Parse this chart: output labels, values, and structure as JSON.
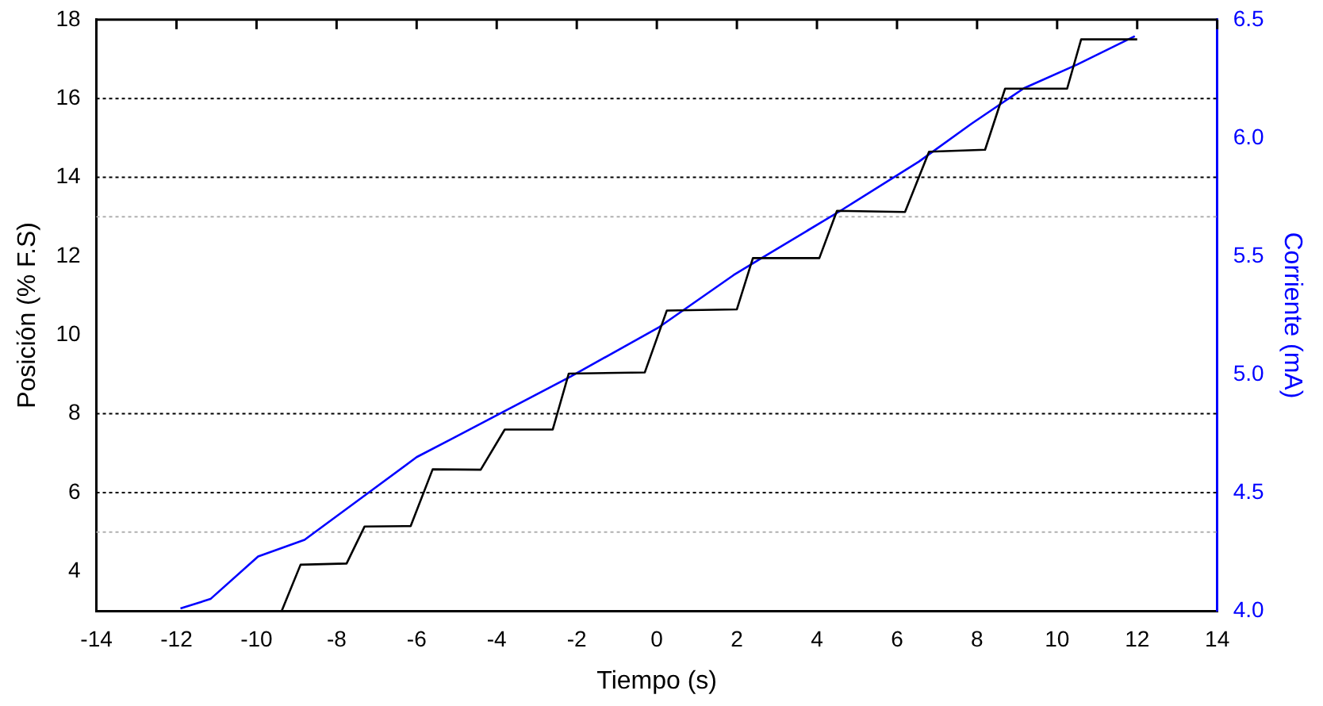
{
  "chart_data": {
    "type": "line",
    "xlabel": "Tiempo (s)",
    "ylabel": "Posición (% F.S)",
    "y2label": "Corriente (mA)",
    "xlim": [
      -14,
      14
    ],
    "xticks": [
      -14,
      -12,
      -10,
      -8,
      -6,
      -4,
      -2,
      0,
      2,
      4,
      6,
      8,
      10,
      12,
      14
    ],
    "ylim": [
      3,
      18
    ],
    "yticks": [
      4,
      6,
      8,
      10,
      12,
      14,
      16,
      18
    ],
    "y2lim": [
      4.0,
      6.5
    ],
    "y2ticks": [
      {
        "value": 4,
        "label": "4.0"
      },
      {
        "value": 4.5,
        "label": "4.5"
      },
      {
        "value": 5,
        "label": "5.0"
      },
      {
        "value": 5.5,
        "label": "5.5"
      },
      {
        "value": 6,
        "label": "6.0"
      },
      {
        "value": 6.5,
        "label": "6.5"
      }
    ],
    "grid": false,
    "legend": false,
    "marker": "none",
    "line_style": "solid",
    "ref_lines": [
      {
        "axis": "y",
        "value": 6,
        "color": "#000000",
        "line_style": "dotted"
      },
      {
        "axis": "y",
        "value": 8,
        "color": "#000000",
        "line_style": "dotted"
      },
      {
        "axis": "y",
        "value": 14,
        "color": "#000000",
        "line_style": "dotted"
      },
      {
        "axis": "y",
        "value": 16,
        "color": "#000000",
        "line_style": "dotted"
      },
      {
        "axis": "y",
        "value": 5,
        "color": "#b0b0b0",
        "line_style": "dotted"
      },
      {
        "axis": "y",
        "value": 13,
        "color": "#b0b0b0",
        "line_style": "dotted"
      }
    ],
    "series": [
      {
        "color": "#000000",
        "x": [
          -9.37,
          -8.9,
          -7.75,
          -7.3,
          -6.15,
          -5.6,
          -4.4,
          -3.8,
          -2.6,
          -2.2,
          -0.3,
          0.25,
          2.0,
          2.4,
          4.06,
          4.5,
          6.2,
          6.8,
          8.2,
          8.7,
          10.25,
          10.6,
          12.0
        ],
        "values": [
          3,
          4.17,
          4.2,
          5.14,
          5.15,
          6.59,
          6.58,
          7.6,
          7.6,
          9.02,
          9.05,
          10.62,
          10.65,
          11.95,
          11.95,
          13.15,
          13.12,
          14.65,
          14.7,
          16.25,
          16.25,
          17.5,
          17.5
        ]
      },
      {
        "color": "#0000ff",
        "axis": "y2",
        "x": [
          -11.9,
          -11.15,
          -9.96,
          -8.8,
          -7.2,
          -6.0,
          -5.09,
          -3.74,
          -2.16,
          0.06,
          1.92,
          2.6,
          4.57,
          6.55,
          7.86,
          9.17,
          10.5,
          11.94
        ],
        "values": [
          4.01,
          4.05,
          4.23,
          4.3,
          4.5,
          4.65,
          4.73,
          4.85,
          4.99,
          5.2,
          5.42,
          5.49,
          5.69,
          5.9,
          6.06,
          6.21,
          6.31,
          6.43
        ]
      }
    ]
  }
}
